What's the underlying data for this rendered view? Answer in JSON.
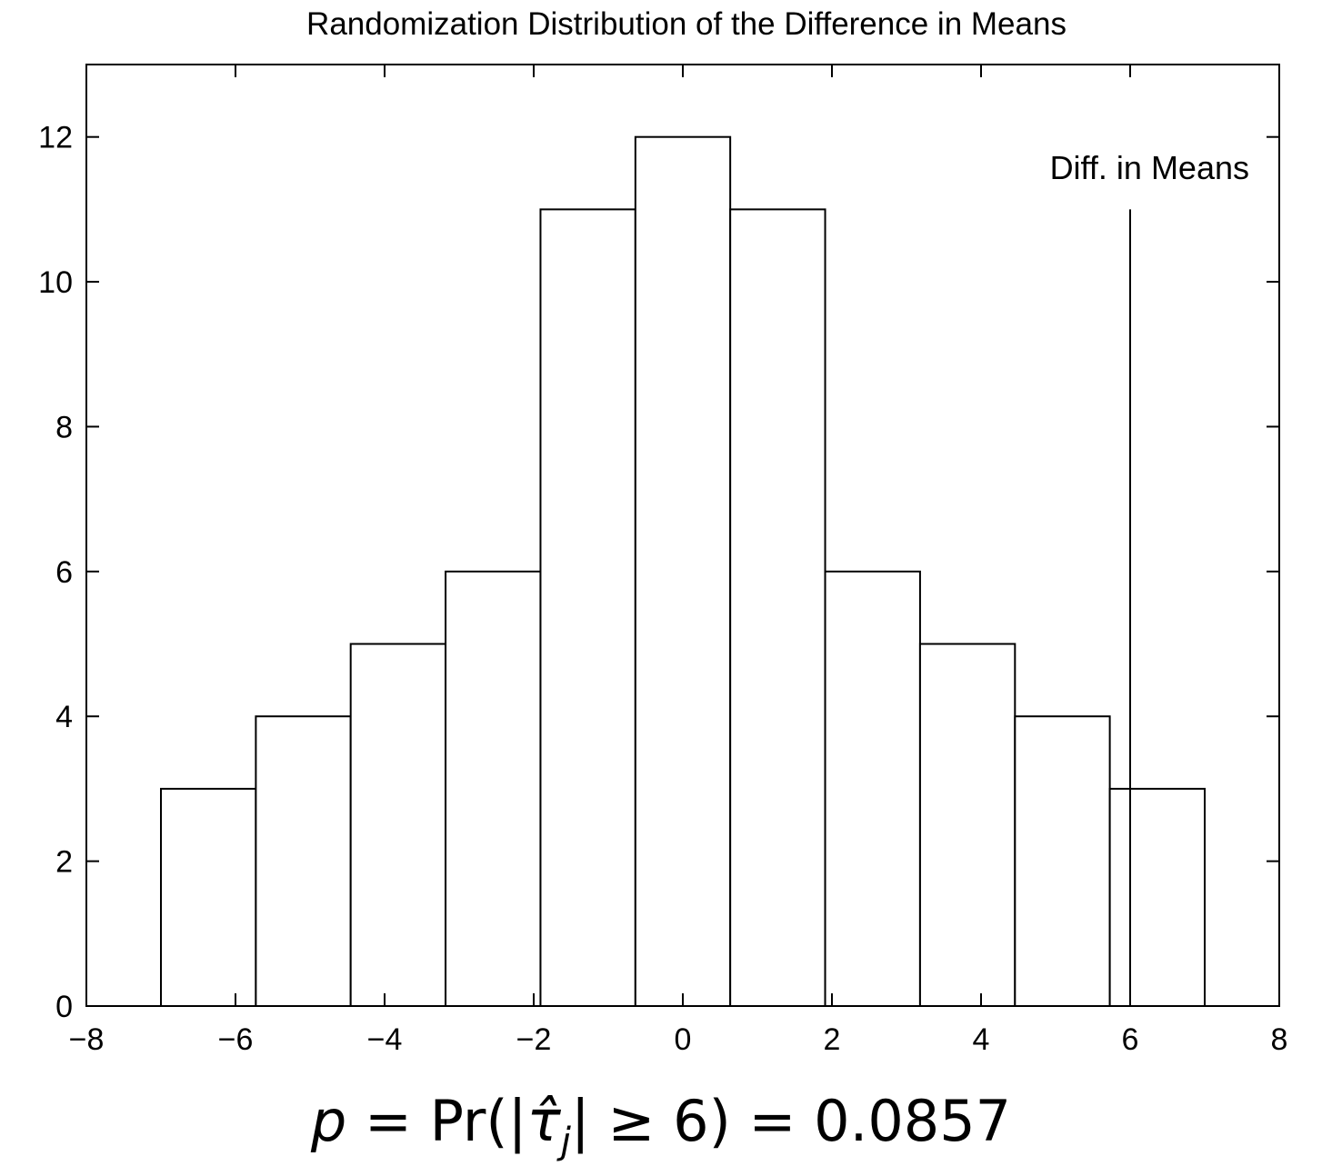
{
  "chart_data": {
    "type": "bar",
    "title": "Randomization Distribution of the Difference in Means",
    "xlabel": "",
    "ylabel": "",
    "xlim": [
      -8,
      8
    ],
    "ylim": [
      0,
      13
    ],
    "xticks": [
      -8,
      -6,
      -4,
      -2,
      0,
      2,
      4,
      6,
      8
    ],
    "xtick_labels": [
      "−8",
      "−6",
      "−4",
      "−2",
      "0",
      "2",
      "4",
      "6",
      "8"
    ],
    "yticks": [
      0,
      2,
      4,
      6,
      8,
      10,
      12
    ],
    "ytick_labels": [
      "0",
      "2",
      "4",
      "6",
      "8",
      "10",
      "12"
    ],
    "grid": false,
    "bins": [
      {
        "x0": -7.0,
        "x1": -5.727,
        "count": 3
      },
      {
        "x0": -5.727,
        "x1": -4.455,
        "count": 4
      },
      {
        "x0": -4.455,
        "x1": -3.182,
        "count": 5
      },
      {
        "x0": -3.182,
        "x1": -1.909,
        "count": 6
      },
      {
        "x0": -1.909,
        "x1": -0.636,
        "count": 11
      },
      {
        "x0": -0.636,
        "x1": 0.636,
        "count": 12
      },
      {
        "x0": 0.636,
        "x1": 1.909,
        "count": 11
      },
      {
        "x0": 1.909,
        "x1": 3.182,
        "count": 6
      },
      {
        "x0": 3.182,
        "x1": 4.455,
        "count": 5
      },
      {
        "x0": 4.455,
        "x1": 5.727,
        "count": 4
      },
      {
        "x0": 5.727,
        "x1": 7.0,
        "count": 3
      }
    ],
    "reference_line": {
      "x": 6,
      "y_top": 11,
      "label": "Diff. in Means"
    }
  },
  "formula": {
    "p": "p",
    "eq1": " = Pr(|",
    "tau": "τ̂",
    "sub": "j",
    "rest": "| ≥ 6) = 0.0857"
  }
}
